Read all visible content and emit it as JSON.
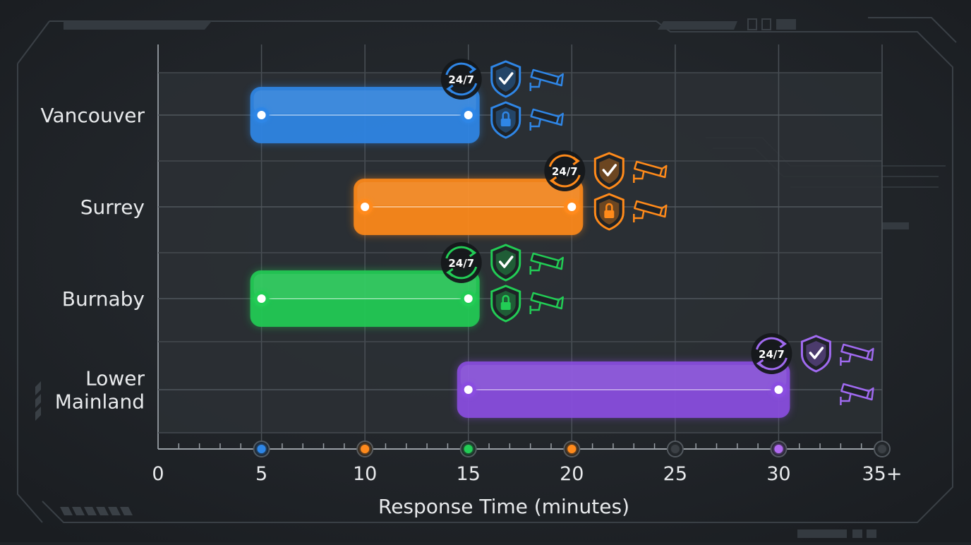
{
  "chart_data": {
    "type": "range-bar",
    "xlabel": "Response Time (minutes)",
    "ylabel": "",
    "xlim": [
      0,
      35
    ],
    "x_ticks": [
      {
        "value": 0,
        "label": "0"
      },
      {
        "value": 5,
        "label": "5"
      },
      {
        "value": 10,
        "label": "10"
      },
      {
        "value": 15,
        "label": "15"
      },
      {
        "value": 20,
        "label": "20"
      },
      {
        "value": 25,
        "label": "25"
      },
      {
        "value": 30,
        "label": "30"
      },
      {
        "value": 35,
        "label": "35+"
      }
    ],
    "grid": true,
    "badge_text": "24/7",
    "series": [
      {
        "category": [
          "Vancouver"
        ],
        "start": 5,
        "end": 15,
        "color": "#2f86e6",
        "icons": [
          "24-7-icon",
          "shield-check-icon",
          "security-camera-icon",
          "shield-lock-icon",
          "security-camera-icon"
        ]
      },
      {
        "category": [
          "Surrey"
        ],
        "start": 10,
        "end": 20,
        "color": "#ff8a1a",
        "icons": [
          "24-7-icon",
          "shield-check-icon",
          "security-camera-icon",
          "shield-lock-icon",
          "security-camera-icon"
        ]
      },
      {
        "category": [
          "Burnaby"
        ],
        "start": 5,
        "end": 15,
        "color": "#22cc55",
        "icons": [
          "24-7-icon",
          "shield-check-icon",
          "security-camera-icon",
          "shield-lock-icon",
          "security-camera-icon"
        ]
      },
      {
        "category": [
          "Lower",
          "Mainland"
        ],
        "start": 15,
        "end": 30,
        "color": "#8a4ee0",
        "icons": [
          "24-7-icon",
          "shield-check-icon",
          "security-camera-icon",
          "security-camera-icon"
        ]
      }
    ],
    "axis_dots": [
      {
        "value": 5,
        "color": "#2f86e6"
      },
      {
        "value": 10,
        "color": "#ff8a1a"
      },
      {
        "value": 15,
        "color": "#22cc55"
      },
      {
        "value": 20,
        "color": "#ff8a1a"
      },
      {
        "value": 25,
        "color": "#3a3f44"
      },
      {
        "value": 30,
        "color": "#b06af0"
      },
      {
        "value": 35,
        "color": "#3a3f44"
      }
    ]
  }
}
